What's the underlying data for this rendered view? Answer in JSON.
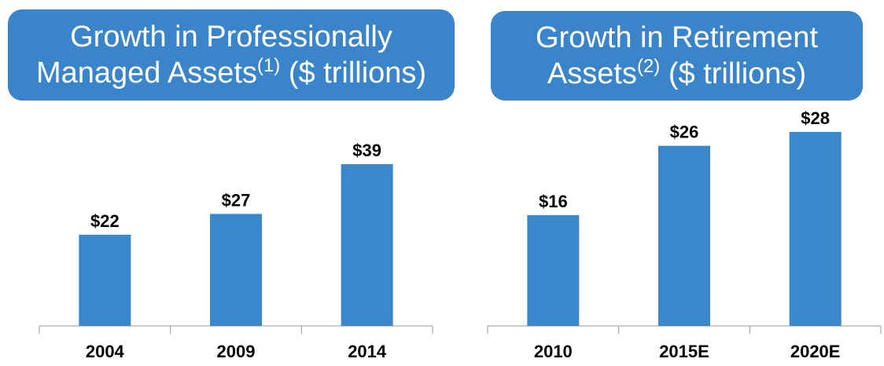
{
  "chart_data": [
    {
      "type": "bar",
      "title": "Growth in Professionally Managed Assets",
      "title_note": "(1)",
      "subtitle": "($ trillions)",
      "categories": [
        "2004",
        "2009",
        "2014"
      ],
      "values": [
        22,
        27,
        39
      ],
      "value_labels": [
        "$22",
        "$27",
        "$39"
      ],
      "color": "#3a87cc"
    },
    {
      "type": "bar",
      "title": "Growth in Retirement Assets",
      "title_note": "(2)",
      "subtitle": "($ trillions)",
      "categories": [
        "2010",
        "2015E",
        "2020E"
      ],
      "values": [
        16,
        26,
        28
      ],
      "value_labels": [
        "$16",
        "$26",
        "$28"
      ],
      "color": "#3a87cc"
    }
  ]
}
